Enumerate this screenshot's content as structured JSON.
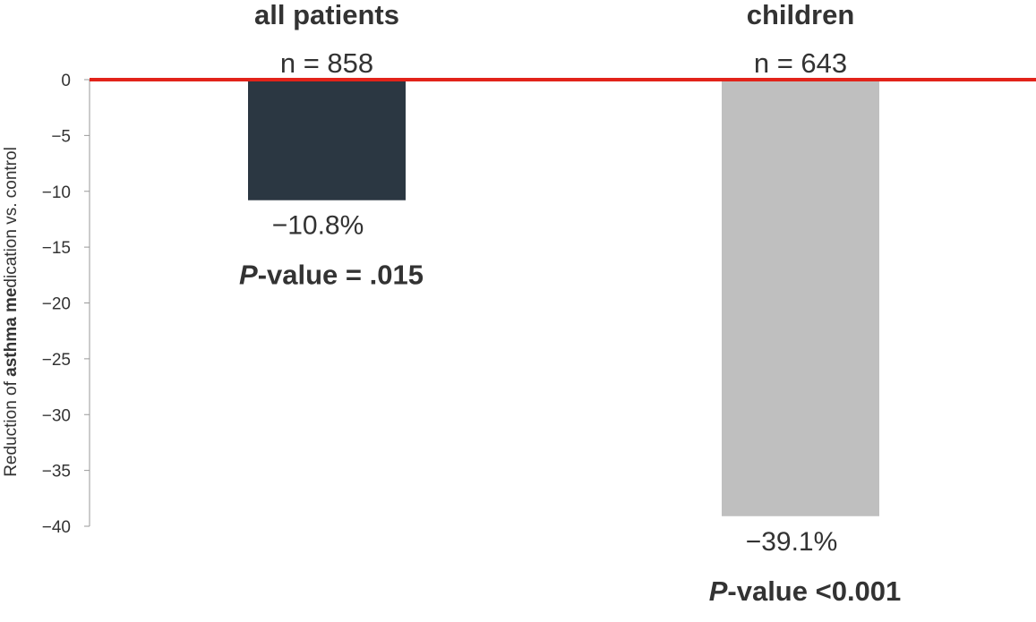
{
  "chart_data": {
    "type": "bar",
    "categories": [
      "all patients",
      "children"
    ],
    "values": [
      -10.8,
      -39.1
    ],
    "colors": [
      "#2b3742",
      "#bfbfbf"
    ],
    "reference_line": {
      "y": 0,
      "color": "#e2231a"
    },
    "ylim": [
      -40,
      0
    ],
    "yticks": [
      0,
      -5,
      -10,
      -15,
      -20,
      -25,
      -30,
      -35,
      -40
    ],
    "ytick_labels": [
      "0",
      "−5",
      "−10",
      "−15",
      "−20",
      "−25",
      "−30",
      "−35",
      "−40"
    ],
    "ylabel_parts": [
      {
        "text": "Reduction of ",
        "bold": false
      },
      {
        "text": "asthma me",
        "bold": true
      },
      {
        "text": "dication vs. control",
        "bold": false
      }
    ],
    "n_labels": [
      "n = 858",
      "n = 643"
    ],
    "value_labels": [
      "−10.8%",
      "−39.1%"
    ],
    "p_labels": [
      {
        "italic": "P",
        "rest": "-value = .015"
      },
      {
        "italic": "P",
        "rest": "-value <0.001"
      }
    ],
    "grid": false
  }
}
